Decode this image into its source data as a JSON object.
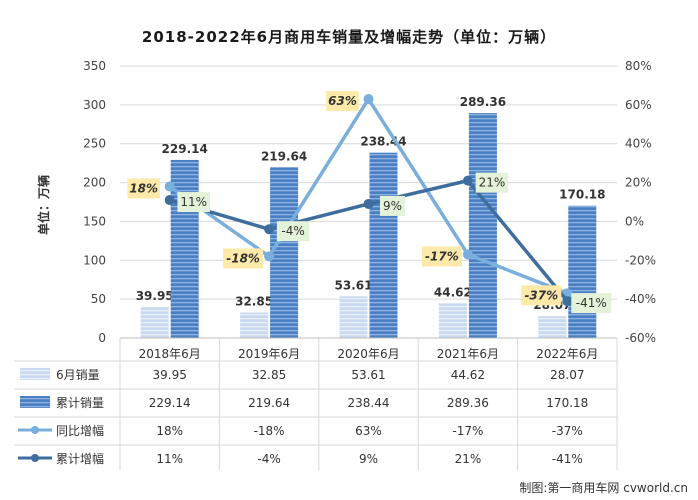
{
  "title": "2018-2022年6月商用车销量及增幅走势（单位：万辆）",
  "credit": "制图:第一商用车网 cvworld.cn",
  "chart_data": {
    "type": "bar",
    "title": "2018-2022年6月商用车销量及增幅走势（单位：万辆）",
    "ylabel": "单位：万辆",
    "ylim": [
      0,
      350
    ],
    "y2lim": [
      -60,
      80
    ],
    "y_ticks": [
      "0",
      "50",
      "100",
      "150",
      "200",
      "250",
      "300",
      "350"
    ],
    "y2_ticks": [
      "-60%",
      "-40%",
      "-20%",
      "0%",
      "20%",
      "40%",
      "60%",
      "80%"
    ],
    "categories": [
      "2018年6月",
      "2019年6月",
      "2020年6月",
      "2021年6月",
      "2022年6月"
    ],
    "series": [
      {
        "name": "6月销量",
        "kind": "bar",
        "axis": "left",
        "values": [
          39.95,
          32.85,
          53.61,
          44.62,
          28.07
        ],
        "labels": [
          "39.95",
          "32.85",
          "53.61",
          "44.62",
          "28.07"
        ],
        "color": "#c9d9ef"
      },
      {
        "name": "累计销量",
        "kind": "bar",
        "axis": "left",
        "values": [
          229.14,
          219.64,
          238.44,
          289.36,
          170.18
        ],
        "labels": [
          "229.14",
          "219.64",
          "238.44",
          "289.36",
          "170.18"
        ],
        "color": "#4a7fc1"
      },
      {
        "name": "同比增幅",
        "kind": "line",
        "axis": "right",
        "values": [
          18,
          -18,
          63,
          -17,
          -37
        ],
        "labels": [
          "18%",
          "-18%",
          "63%",
          "-17%",
          "-37%"
        ],
        "color": "#7aaedc"
      },
      {
        "name": "累计增幅",
        "kind": "line",
        "axis": "right",
        "values": [
          11,
          -4,
          9,
          21,
          -41
        ],
        "labels": [
          "11%",
          "-4%",
          "9%",
          "21%",
          "-41%"
        ],
        "color": "#3f6e9e"
      }
    ],
    "grid": true,
    "legend": "data table below chart"
  }
}
